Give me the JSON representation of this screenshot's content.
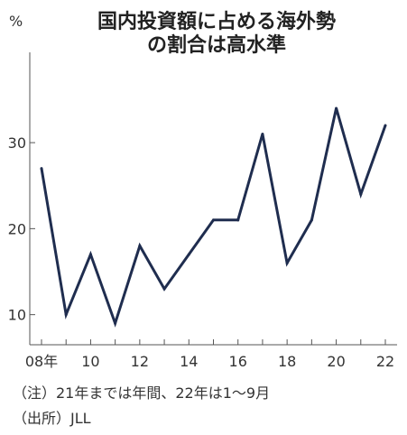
{
  "chart_data": {
    "type": "line",
    "title": "国内投資額に占める海外勢の割合は高水準",
    "title_lines": [
      "国内投資額に占める海外勢",
      "の割合は高水準"
    ],
    "y_unit": "%",
    "x": [
      2008,
      2009,
      2010,
      2011,
      2012,
      2013,
      2014,
      2015,
      2016,
      2017,
      2018,
      2019,
      2020,
      2021,
      2022
    ],
    "values": [
      27,
      10,
      17,
      9,
      18,
      13,
      17,
      21,
      21,
      31,
      16,
      21,
      34,
      24,
      32
    ],
    "x_tick_labels": [
      "08年",
      "10",
      "12",
      "14",
      "16",
      "18",
      "20",
      "22"
    ],
    "x_tick_values": [
      2008,
      2010,
      2012,
      2014,
      2016,
      2018,
      2020,
      2022
    ],
    "y_ticks": [
      10,
      20,
      30
    ],
    "xlim": [
      2008,
      2022
    ],
    "ylim": [
      6.5,
      40.5
    ],
    "grid": false,
    "line_color": "#1f2d4f"
  },
  "notes": {
    "note1": "（注）21年までは年間、22年は1～9月",
    "note2": "（出所）JLL"
  }
}
